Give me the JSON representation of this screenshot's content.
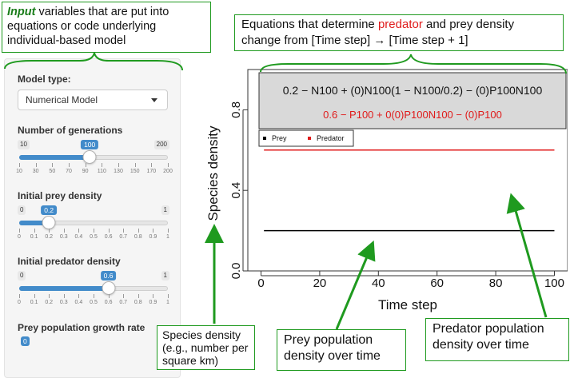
{
  "annotations": {
    "input_em": "Input",
    "input_rest": " variables that are put into equations or code underlying individual-based model",
    "equations_pre": "Equations that determine ",
    "equations_pred": "predator",
    "equations_post": " and prey density change from [Time step] → [Time step + 1]",
    "species_density": "Species density (e.g., number per square km)",
    "prey_population": "Prey population density over time",
    "predator_population": "Predator population density over time"
  },
  "sidebar": {
    "model_type_label": "Model type:",
    "model_type_value": "Numerical Model",
    "generations": {
      "label": "Number of generations",
      "min": "10",
      "max": "200",
      "value": "100",
      "fraction": 0.474,
      "ticks": [
        "10",
        "30",
        "50",
        "70",
        "90",
        "110",
        "130",
        "150",
        "170",
        "200"
      ]
    },
    "initial_prey": {
      "label": "Initial prey density",
      "min": "0",
      "max": "1",
      "value": "0.2",
      "fraction": 0.2,
      "ticks": [
        "0",
        "0.1",
        "0.2",
        "0.3",
        "0.4",
        "0.5",
        "0.6",
        "0.7",
        "0.8",
        "0.9",
        "1"
      ]
    },
    "initial_predator": {
      "label": "Initial predator density",
      "min": "0",
      "max": "1",
      "value": "0.6",
      "fraction": 0.6,
      "ticks": [
        "0",
        "0.1",
        "0.2",
        "0.3",
        "0.4",
        "0.5",
        "0.6",
        "0.7",
        "0.8",
        "0.9",
        "1"
      ]
    },
    "prey_growth_label": "Prey population growth rate",
    "prey_growth_value": "0"
  },
  "equations": {
    "prey_line": "0.2 − N100 + (0)N100(1 − N100/0.2) − (0)P100N100",
    "predator_line": "0.6 − P100 + 0(0)P100N100 − (0)P100"
  },
  "legend": {
    "prey": "Prey",
    "predator": "Predator"
  },
  "colors": {
    "accent": "#428bca",
    "annotation": "#1f9a1f",
    "predator": "#e01b1b",
    "prey": "#000000"
  },
  "chart_data": {
    "type": "line",
    "xlabel": "Time step",
    "ylabel": "Species density",
    "xlim": [
      0,
      100
    ],
    "ylim": [
      0,
      1
    ],
    "x_ticks": [
      "0",
      "20",
      "40",
      "60",
      "80",
      "100"
    ],
    "y_ticks": [
      "0.0",
      "0.4",
      "0.8"
    ],
    "x_tick_values": [
      0,
      20,
      40,
      60,
      80,
      100
    ],
    "y_tick_values": [
      0,
      0.4,
      0.8
    ],
    "series": [
      {
        "name": "Prey",
        "color": "#000000",
        "x": [
          1,
          100
        ],
        "y": [
          0.2,
          0.2
        ]
      },
      {
        "name": "Predator",
        "color": "#e01b1b",
        "x": [
          1,
          100
        ],
        "y": [
          0.6,
          0.6
        ]
      }
    ]
  }
}
